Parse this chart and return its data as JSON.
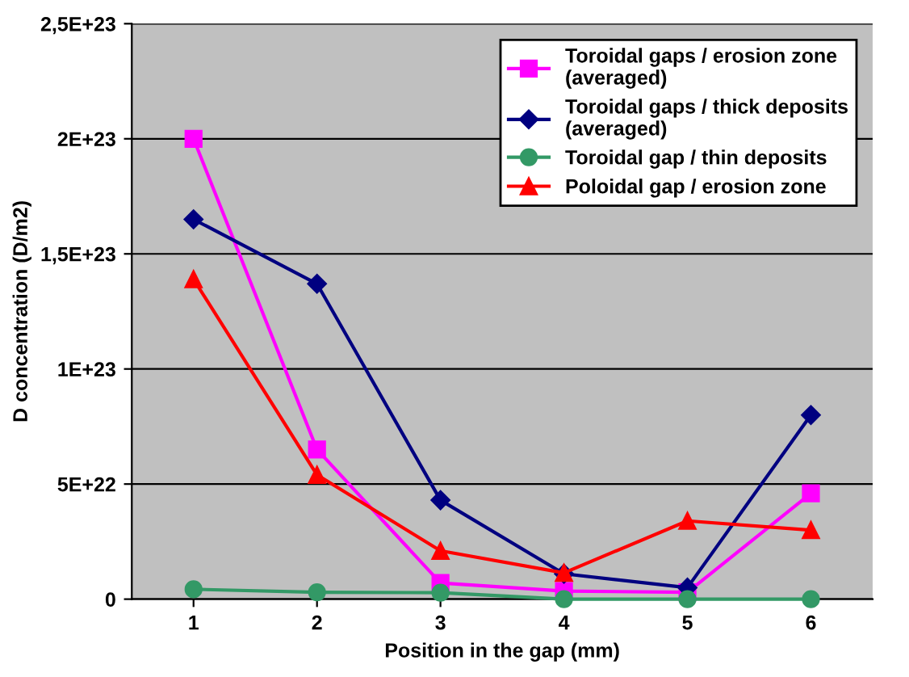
{
  "chart_data": {
    "type": "line",
    "xlabel": "Position in the gap (mm)",
    "ylabel": "D concentration (D/m2)",
    "categories": [
      "1",
      "2",
      "3",
      "4",
      "5",
      "6"
    ],
    "ylim": [
      0,
      2.5e+23
    ],
    "yticks": [
      0,
      {
        "value": 5e+22,
        "label": "5E+22"
      },
      {
        "value": 1e+23,
        "label": "1E+23"
      },
      {
        "value": 1.5e+23,
        "label": "1,5E+23"
      },
      {
        "value": 2e+23,
        "label": "2E+23"
      },
      {
        "value": 2.5e+23,
        "label": "2,5E+23"
      }
    ],
    "grid": "y",
    "legend": "top right",
    "series": [
      {
        "name": "Toroidal gaps / erosion zone\n(averaged)",
        "color": "#ff00ff",
        "marker": "square",
        "values": [
          2e+23,
          6.5e+22,
          7e+21,
          3.5e+21,
          3e+21,
          4.6e+22
        ]
      },
      {
        "name": "Toroidal gaps / thick deposits\n(averaged)",
        "color": "#000080",
        "marker": "diamond",
        "values": [
          1.65e+23,
          1.37e+23,
          4.3e+22,
          1.1e+22,
          5e+21,
          8e+22
        ]
      },
      {
        "name": "Toroidal gap / thin deposits",
        "color": "#339966",
        "marker": "circle",
        "values": [
          4.3e+21,
          3e+21,
          2.8e+21,
          0,
          0,
          0
        ]
      },
      {
        "name": "Poloidal gap / erosion zone",
        "color": "#ff0000",
        "marker": "triangle",
        "values": [
          1.39e+23,
          5.4e+22,
          2.1e+22,
          1.14e+22,
          3.4e+22,
          3e+22
        ]
      }
    ]
  }
}
